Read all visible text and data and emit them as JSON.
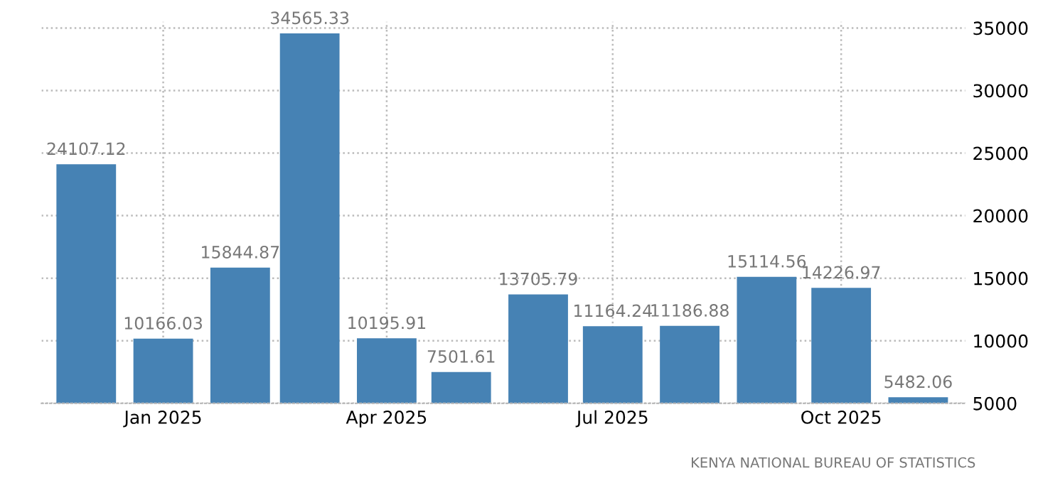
{
  "chart_data": {
    "type": "bar",
    "x": [
      "2024-12",
      "2025-01",
      "2025-02",
      "2025-03",
      "2025-04",
      "2025-05",
      "2025-06",
      "2025-07",
      "2025-08",
      "2025-09",
      "2025-10",
      "2025-11"
    ],
    "values": [
      24107.12,
      10166.03,
      15844.87,
      34565.33,
      10195.91,
      7501.61,
      13705.79,
      11164.24,
      11186.88,
      15114.56,
      14226.97,
      5482.06
    ],
    "color": "#4682b4",
    "data_labels": true,
    "xlim": [
      "2024-11-13",
      "2025-11-20"
    ],
    "xticks": [
      {
        "value": "2025-01",
        "label": "Jan 2025"
      },
      {
        "value": "2025-04",
        "label": "Apr 2025"
      },
      {
        "value": "2025-07",
        "label": "Jul 2025"
      },
      {
        "value": "2025-10",
        "label": "Oct 2025"
      }
    ],
    "ylim": [
      5000,
      35500
    ],
    "yticks": [
      5000,
      10000,
      15000,
      20000,
      25000,
      30000,
      35000
    ],
    "grid": true,
    "annotations": [
      "KENYA NATIONAL BUREAU OF STATISTICS"
    ]
  }
}
